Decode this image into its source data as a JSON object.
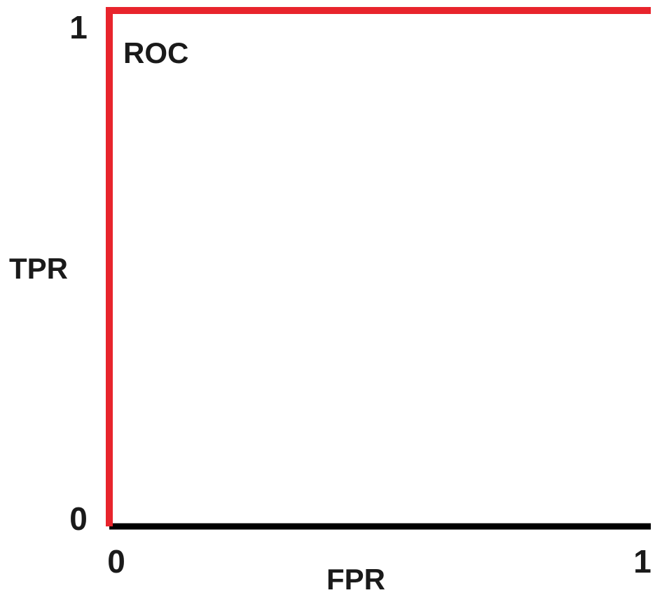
{
  "chart_data": {
    "type": "line",
    "title": "",
    "annotation": "ROC",
    "xlabel": "FPR",
    "ylabel": "TPR",
    "xlim": [
      0,
      1
    ],
    "ylim": [
      0,
      1
    ],
    "x_ticks": [
      "0",
      "1"
    ],
    "y_ticks": [
      "0",
      "1"
    ],
    "grid": false,
    "series": [
      {
        "points": [
          {
            "x": 0,
            "y": 0
          },
          {
            "x": 0,
            "y": 1
          },
          {
            "x": 1,
            "y": 1
          }
        ],
        "color": "#e8242c"
      }
    ],
    "axis_color": "#000000"
  }
}
